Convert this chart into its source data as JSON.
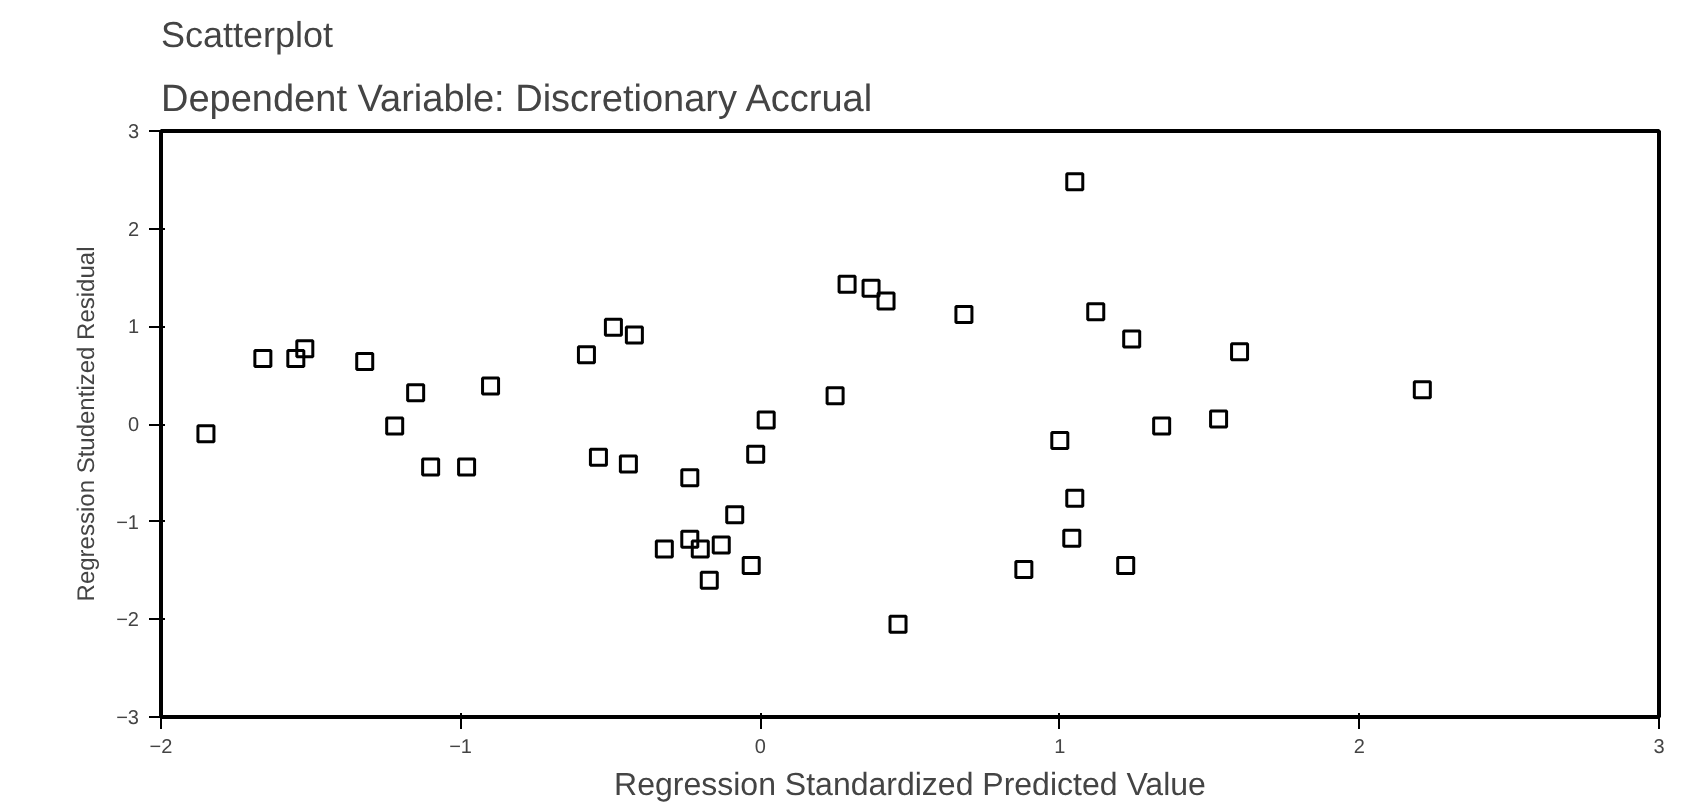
{
  "chart_data": {
    "type": "scatter",
    "title": "Scatterplot",
    "subtitle": "Dependent Variable: Discretionary Accrual",
    "xlabel": "Regression Standardized Predicted Value",
    "ylabel": "Regression Studentized Residual",
    "marker": "square",
    "color": "#000000",
    "grid": false,
    "xlim": [
      -2,
      3
    ],
    "xticks": [
      -2,
      -1,
      0,
      1,
      2,
      3
    ],
    "ylim": [
      -3,
      3
    ],
    "yticks": [
      -3,
      -2,
      -1,
      0,
      1,
      2,
      3
    ],
    "x": [
      -1.85,
      -1.66,
      -1.55,
      -1.52,
      -1.32,
      -1.22,
      -1.15,
      -1.1,
      -0.98,
      -0.9,
      -0.58,
      -0.54,
      -0.49,
      -0.44,
      -0.42,
      -0.32,
      -0.235,
      -0.2,
      -0.13,
      -0.17,
      -0.085,
      -0.03,
      -0.235,
      -0.015,
      0.02,
      0.25,
      0.29,
      0.37,
      0.42,
      0.46,
      0.68,
      0.88,
      1.0,
      1.05,
      1.05,
      1.04,
      1.12,
      1.24,
      1.22,
      1.34,
      1.53,
      1.6,
      2.21
    ],
    "values": [
      -0.1,
      0.67,
      0.67,
      0.77,
      0.64,
      -0.02,
      0.32,
      -0.44,
      -0.44,
      0.39,
      0.71,
      -0.34,
      0.99,
      -0.41,
      0.91,
      -1.28,
      -1.18,
      -1.28,
      -1.24,
      -1.6,
      -0.93,
      -1.45,
      -0.55,
      -0.31,
      0.04,
      0.29,
      1.43,
      1.39,
      1.26,
      -2.05,
      1.12,
      -1.49,
      -0.17,
      2.48,
      -0.76,
      -1.17,
      1.15,
      0.87,
      -1.45,
      -0.02,
      0.05,
      0.74,
      0.35
    ]
  }
}
